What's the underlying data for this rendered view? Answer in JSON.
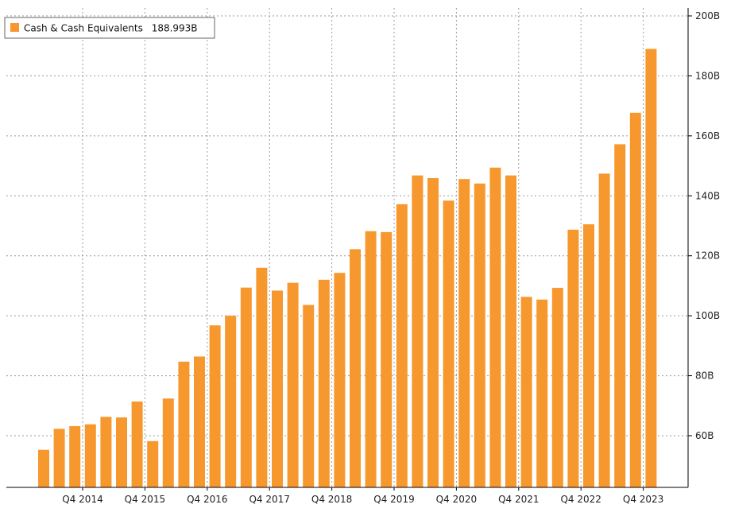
{
  "colors": {
    "bar": "#F7982F",
    "grid": "#9a9a9a",
    "axis": "#000000",
    "background": "#ffffff"
  },
  "chart_data": {
    "type": "bar",
    "legend": {
      "label": "Cash & Cash Equivalents",
      "value": "188.993B",
      "placement": "top-left"
    },
    "ylim": [
      40,
      200
    ],
    "y_axis_position": "right",
    "y_ticks": [
      60,
      80,
      100,
      120,
      140,
      160,
      180,
      200
    ],
    "y_tick_labels": [
      "60B",
      "80B",
      "100B",
      "120B",
      "140B",
      "160B",
      "180B",
      "200B"
    ],
    "x_tick_labels": [
      {
        "label": "Q4 2014",
        "index": 2
      },
      {
        "label": "Q4 2015",
        "index": 6
      },
      {
        "label": "Q4 2016",
        "index": 10
      },
      {
        "label": "Q4 2017",
        "index": 14
      },
      {
        "label": "Q4 2018",
        "index": 18
      },
      {
        "label": "Q4 2019",
        "index": 22
      },
      {
        "label": "Q4 2020",
        "index": 26
      },
      {
        "label": "Q4 2021",
        "index": 30
      },
      {
        "label": "Q4 2022",
        "index": 34
      },
      {
        "label": "Q4 2023",
        "index": 38
      }
    ],
    "grid": true,
    "values": [
      55.3,
      62.3,
      63.2,
      63.8,
      66.3,
      66.1,
      71.4,
      58.2,
      72.4,
      84.7,
      86.4,
      96.8,
      100.0,
      109.4,
      116.0,
      108.4,
      111.0,
      103.6,
      112.0,
      114.3,
      122.2,
      128.2,
      127.9,
      137.2,
      146.8,
      145.9,
      138.4,
      145.6,
      144.1,
      149.4,
      146.8,
      106.3,
      105.4,
      109.3,
      128.7,
      130.5,
      147.4,
      157.2,
      167.7,
      188.993
    ]
  }
}
